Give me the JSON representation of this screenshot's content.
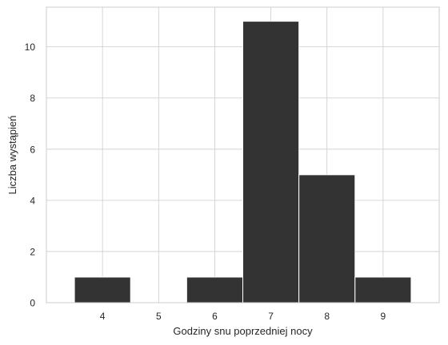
{
  "chart_data": {
    "type": "bar",
    "subtype": "histogram",
    "xlabel": "Godziny snu poprzedniej nocy",
    "ylabel": "Liczba wystąpień",
    "x_ticks": [
      "4",
      "5",
      "6",
      "7",
      "8",
      "9"
    ],
    "y_ticks": [
      "0",
      "2",
      "4",
      "6",
      "8",
      "10"
    ],
    "xlim": [
      3.0,
      10.0
    ],
    "ylim": [
      0,
      11.55
    ],
    "grid": true,
    "bars": [
      {
        "left": 3.5,
        "right": 4.5,
        "value": 1
      },
      {
        "left": 4.5,
        "right": 5.5,
        "value": 0
      },
      {
        "left": 5.5,
        "right": 6.5,
        "value": 1
      },
      {
        "left": 6.5,
        "right": 7.5,
        "value": 11
      },
      {
        "left": 7.5,
        "right": 8.5,
        "value": 5
      },
      {
        "left": 8.5,
        "right": 9.5,
        "value": 1
      }
    ],
    "colors": {
      "bar": "#333333",
      "bar_edge": "#ffffff",
      "grid": "#cccccc",
      "frame": "#cccccc",
      "text": "#262626"
    }
  }
}
